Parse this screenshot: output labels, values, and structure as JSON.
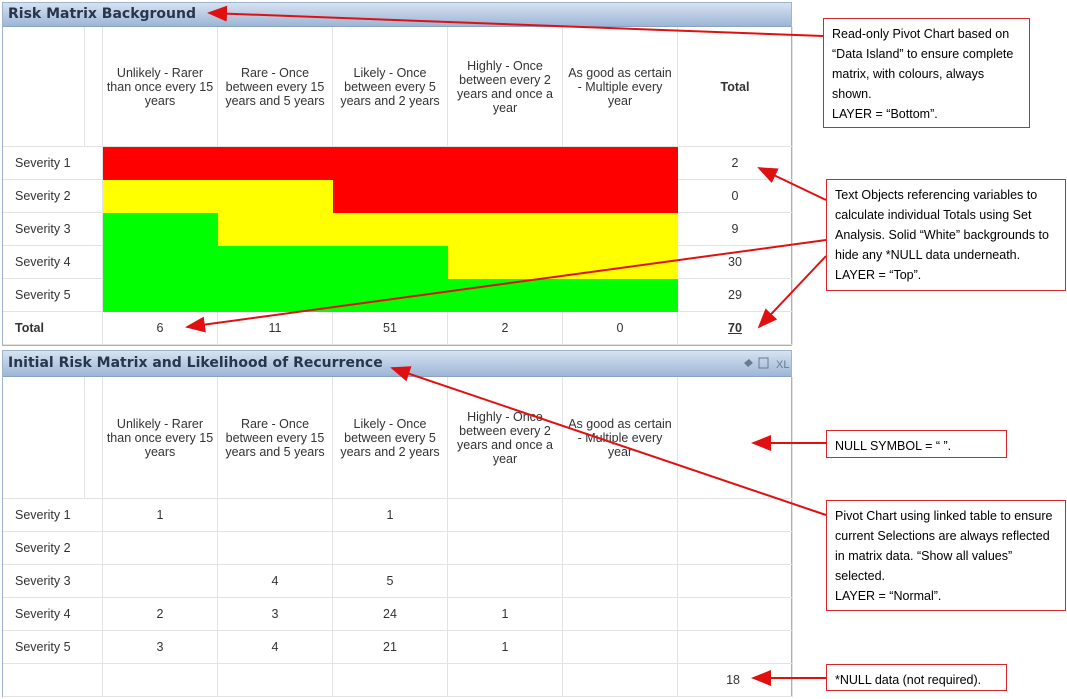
{
  "top": {
    "title": "Risk Matrix Background",
    "columns": [
      "Unlikely - Rarer than once every 15 years",
      "Rare - Once between every 15 years and 5 years",
      "Likely - Once between every 5 years and 2 years",
      "Highly - Once between every 2 years and once a year",
      "As good as certain - Multiple every year",
      "Total"
    ],
    "rows": [
      {
        "label": "Severity 1",
        "colors": [
          "#ff0000",
          "#ff0000",
          "#ff0000",
          "#ff0000",
          "#ff0000"
        ],
        "total": 2
      },
      {
        "label": "Severity 2",
        "colors": [
          "#ffff00",
          "#ffff00",
          "#ff0000",
          "#ff0000",
          "#ff0000"
        ],
        "total": 0
      },
      {
        "label": "Severity 3",
        "colors": [
          "#00ff00",
          "#ffff00",
          "#ffff00",
          "#ffff00",
          "#ffff00"
        ],
        "total": 9
      },
      {
        "label": "Severity 4",
        "colors": [
          "#00ff00",
          "#00ff00",
          "#00ff00",
          "#ffff00",
          "#ffff00"
        ],
        "total": 30
      },
      {
        "label": "Severity 5",
        "colors": [
          "#00ff00",
          "#00ff00",
          "#00ff00",
          "#00ff00",
          "#00ff00"
        ],
        "total": 29
      }
    ],
    "total_row": {
      "label": "Total",
      "values": [
        6,
        11,
        51,
        2,
        0,
        70
      ]
    }
  },
  "bottom": {
    "title": "Initial Risk Matrix and Likelihood of Recurrence",
    "toolbar": "XL",
    "columns": [
      "Unlikely - Rarer than once every 15 years",
      "Rare - Once between every 15 years and 5 years",
      "Likely - Once between every 5 years and 2 years",
      "Highly - Once between every 2 years and once a year",
      "As good as certain - Multiple every year"
    ],
    "rows": [
      {
        "label": "Severity 1",
        "values": [
          1,
          null,
          1,
          null,
          null
        ]
      },
      {
        "label": "Severity 2",
        "values": [
          null,
          null,
          null,
          null,
          null
        ]
      },
      {
        "label": "Severity 3",
        "values": [
          null,
          4,
          5,
          null,
          null
        ]
      },
      {
        "label": "Severity 4",
        "values": [
          2,
          3,
          24,
          1,
          null
        ]
      },
      {
        "label": "Severity 5",
        "values": [
          3,
          4,
          21,
          1,
          null
        ]
      }
    ],
    "null_total": 18
  },
  "annotations": [
    {
      "lines": [
        "Read-only Pivot Chart based on “Data Island” to ensure complete matrix, with colours, always shown.",
        "LAYER = “Bottom”."
      ]
    },
    {
      "lines": [
        "Text Objects referencing variables to calculate individual Totals using Set Analysis.  Solid “White” backgrounds to hide any *NULL data underneath.",
        "LAYER = “Top”."
      ]
    },
    {
      "lines": [
        "NULL SYMBOL = “ ”."
      ]
    },
    {
      "lines": [
        "Pivot Chart using linked table to ensure current Selections are always reflected in matrix data.  “Show all values” selected.",
        "LAYER = “Normal”."
      ]
    },
    {
      "lines": [
        "*NULL data (not required)."
      ]
    }
  ]
}
